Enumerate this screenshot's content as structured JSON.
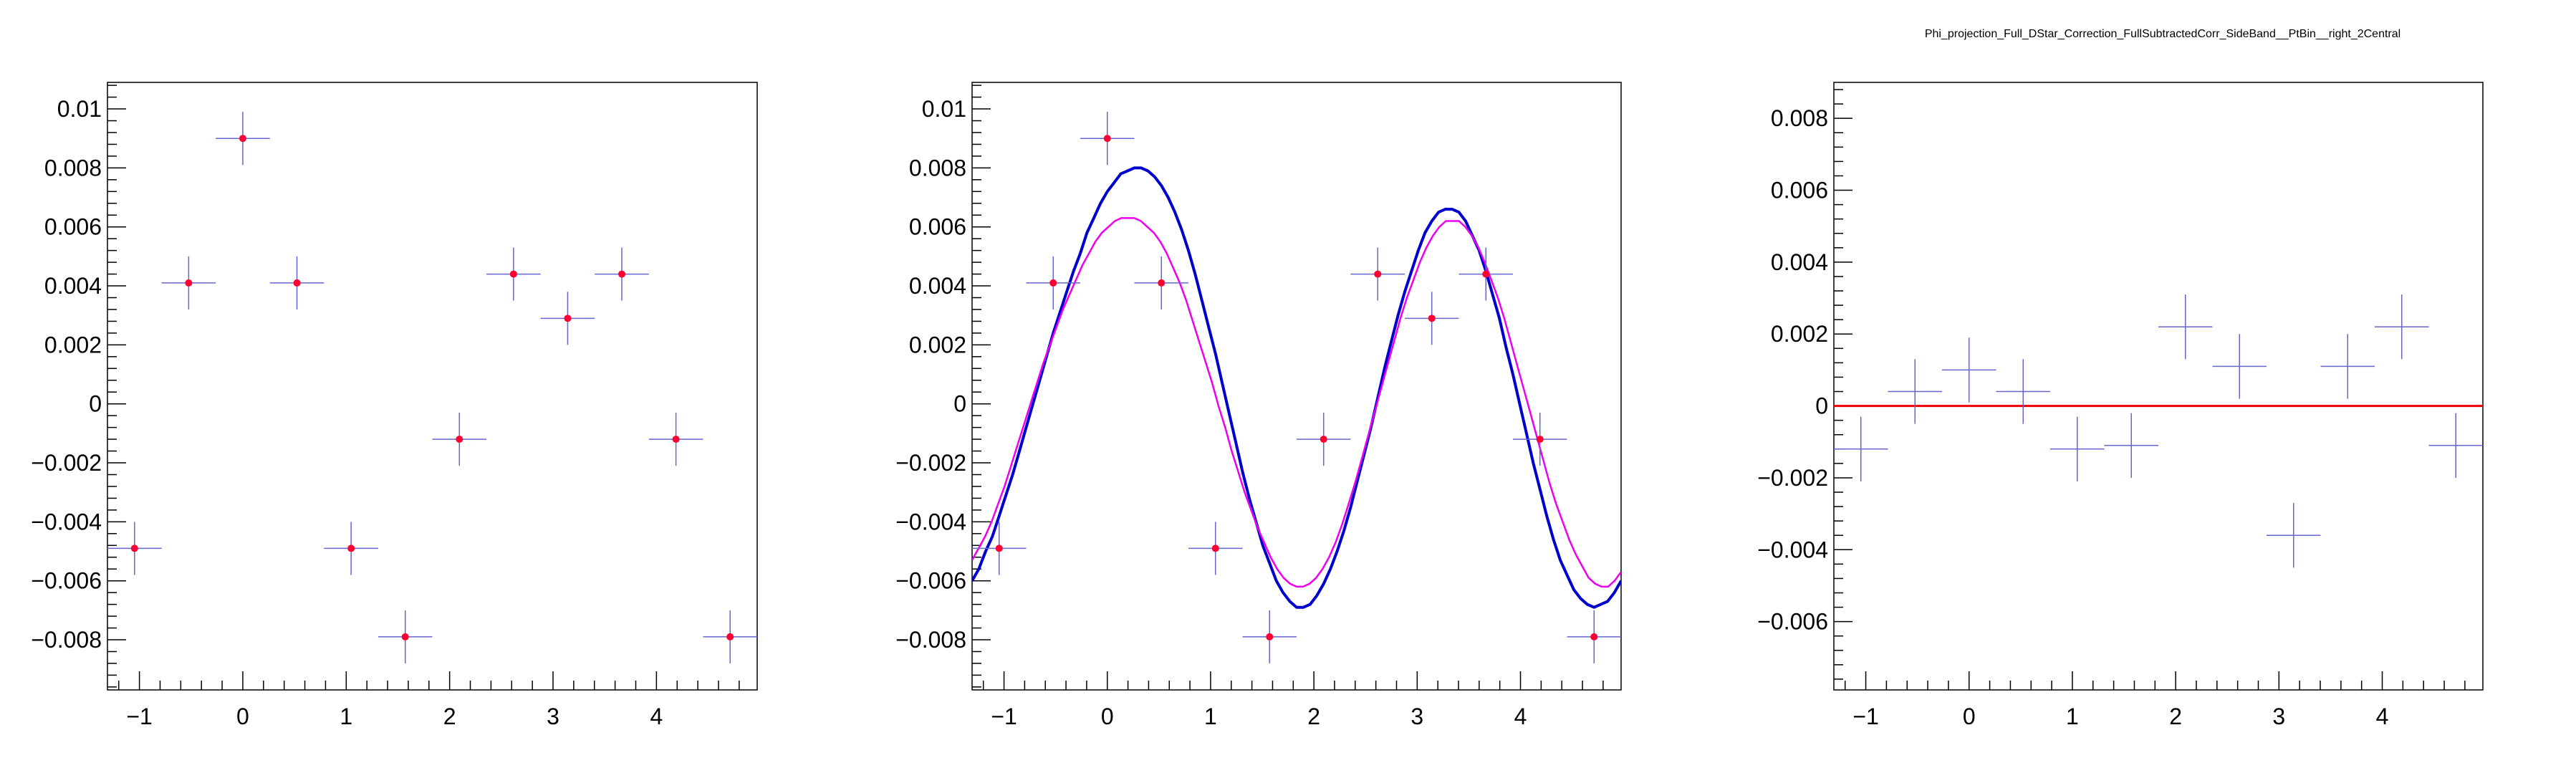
{
  "chart_data": [
    {
      "type": "scatter",
      "title": "",
      "xlabel": "",
      "ylabel": "",
      "xlim": [
        -1.309,
        4.9742
      ],
      "ylim": [
        -0.0097,
        0.0109
      ],
      "xticks": [
        -1,
        0,
        1,
        2,
        3,
        4
      ],
      "xtick_labels": [
        "−1",
        "0",
        "1",
        "2",
        "3",
        "4"
      ],
      "yticks": [
        -0.008,
        -0.006,
        -0.004,
        -0.002,
        0,
        0.002,
        0.004,
        0.006,
        0.008,
        0.01
      ],
      "ytick_labels": [
        "−0.008",
        "−0.006",
        "−0.004",
        "−0.002",
        "0",
        "0.002",
        "0.004",
        "0.006",
        "0.008",
        "0.01"
      ],
      "series": [
        {
          "x": [
            -1.0472,
            -0.5236,
            0,
            0.5236,
            1.0472,
            1.5708,
            2.0944,
            2.618,
            3.1416,
            3.6652,
            4.1888,
            4.7124
          ],
          "y": [
            -0.0049,
            0.0041,
            0.009,
            0.0041,
            -0.0049,
            -0.0079,
            -0.0012,
            0.0044,
            0.0029,
            0.0044,
            -0.0012,
            -0.0079
          ],
          "yerr": [
            0.0009,
            0.0009,
            0.0009,
            0.0009,
            0.0009,
            0.0009,
            0.0009,
            0.0009,
            0.0009,
            0.0009,
            0.0009,
            0.0009
          ],
          "xerr": 0.2618,
          "errorbar_color": "#6666cc",
          "marker_color": "#ff0033"
        }
      ],
      "curves": []
    },
    {
      "type": "scatter",
      "title": "",
      "xlabel": "",
      "ylabel": "",
      "xlim": [
        -1.309,
        4.9742
      ],
      "ylim": [
        -0.0097,
        0.0109
      ],
      "xticks": [
        -1,
        0,
        1,
        2,
        3,
        4
      ],
      "xtick_labels": [
        "−1",
        "0",
        "1",
        "2",
        "3",
        "4"
      ],
      "yticks": [
        -0.008,
        -0.006,
        -0.004,
        -0.002,
        0,
        0.002,
        0.004,
        0.006,
        0.008,
        0.01
      ],
      "ytick_labels": [
        "−0.008",
        "−0.006",
        "−0.004",
        "−0.002",
        "0",
        "0.002",
        "0.004",
        "0.006",
        "0.008",
        "0.01"
      ],
      "series": [
        {
          "x": [
            -1.0472,
            -0.5236,
            0,
            0.5236,
            1.0472,
            1.5708,
            2.0944,
            2.618,
            3.1416,
            3.6652,
            4.1888,
            4.7124
          ],
          "y": [
            -0.0049,
            0.0041,
            0.009,
            0.0041,
            -0.0049,
            -0.0079,
            -0.0012,
            0.0044,
            0.0029,
            0.0044,
            -0.0012,
            -0.0079
          ],
          "yerr": [
            0.0009,
            0.0009,
            0.0009,
            0.0009,
            0.0009,
            0.0009,
            0.0009,
            0.0009,
            0.0009,
            0.0009,
            0.0009,
            0.0009
          ],
          "xerr": 0.2618,
          "errorbar_color": "#6666cc",
          "marker_color": "#ff0033"
        }
      ],
      "curves": [
        {
          "color": "#0000cc",
          "x_range": [
            -1.309,
            4.9742
          ],
          "y": [
            -0.006,
            -0.0056,
            -0.005,
            -0.0045,
            -0.0038,
            -0.0031,
            -0.0024,
            -0.0016,
            -0.0008,
            0.0,
            0.0008,
            0.0016,
            0.0024,
            0.0031,
            0.0038,
            0.0045,
            0.0051,
            0.0058,
            0.0063,
            0.0068,
            0.0072,
            0.0075,
            0.0078,
            0.0079,
            0.008,
            0.008,
            0.0079,
            0.0077,
            0.0074,
            0.007,
            0.0065,
            0.0059,
            0.0052,
            0.0044,
            0.0035,
            0.0026,
            0.0017,
            0.0007,
            -0.0003,
            -0.0013,
            -0.0023,
            -0.0032,
            -0.004,
            -0.0048,
            -0.0054,
            -0.006,
            -0.0064,
            -0.0067,
            -0.0069,
            -0.0069,
            -0.0068,
            -0.0065,
            -0.0061,
            -0.0056,
            -0.005,
            -0.0043,
            -0.0035,
            -0.0026,
            -0.0017,
            -0.0008,
            0.0002,
            0.0012,
            0.0021,
            0.003,
            0.0038,
            0.0045,
            0.0052,
            0.0058,
            0.0062,
            0.0065,
            0.0066,
            0.0066,
            0.0065,
            0.0062,
            0.0057,
            0.0052,
            0.0045,
            0.0037,
            0.0029,
            0.0019,
            0.001,
            0.0,
            -0.001,
            -0.002,
            -0.0029,
            -0.0038,
            -0.0046,
            -0.0053,
            -0.0058,
            -0.0063,
            -0.0066,
            -0.0068,
            -0.0069,
            -0.0068,
            -0.0067,
            -0.0064,
            -0.006
          ]
        },
        {
          "color": "#ee00ee",
          "x_range": [
            -1.309,
            4.9742
          ],
          "y": [
            -0.0053,
            -0.0049,
            -0.0045,
            -0.004,
            -0.0034,
            -0.0028,
            -0.0021,
            -0.0014,
            -0.0007,
            0.0,
            0.0007,
            0.0014,
            0.002,
            0.0026,
            0.0032,
            0.0037,
            0.0042,
            0.0047,
            0.0051,
            0.0055,
            0.0058,
            0.006,
            0.0062,
            0.0063,
            0.0063,
            0.0063,
            0.0062,
            0.006,
            0.0058,
            0.0055,
            0.0051,
            0.0046,
            0.0041,
            0.0035,
            0.0028,
            0.0021,
            0.0014,
            0.0007,
            -0.0001,
            -0.0008,
            -0.0016,
            -0.0023,
            -0.003,
            -0.0036,
            -0.0042,
            -0.0047,
            -0.0052,
            -0.0056,
            -0.0059,
            -0.0061,
            -0.0062,
            -0.0062,
            -0.0061,
            -0.0059,
            -0.0056,
            -0.0052,
            -0.0047,
            -0.0041,
            -0.0034,
            -0.0027,
            -0.0019,
            -0.0011,
            -0.0003,
            0.0005,
            0.0013,
            0.0021,
            0.0029,
            0.0036,
            0.0042,
            0.0048,
            0.0053,
            0.0057,
            0.006,
            0.0062,
            0.0062,
            0.0062,
            0.006,
            0.0057,
            0.0053,
            0.0048,
            0.0042,
            0.0036,
            0.0029,
            0.0021,
            0.0013,
            0.0005,
            -0.0003,
            -0.0011,
            -0.0019,
            -0.0027,
            -0.0034,
            -0.004,
            -0.0046,
            -0.0051,
            -0.0055,
            -0.0059,
            -0.0061,
            -0.0062,
            -0.0062,
            -0.006,
            -0.0057
          ]
        }
      ]
    },
    {
      "type": "scatter",
      "title": "Phi_projection_Full_DStar_Correction_FullSubtractedCorr_SideBand__PtBin__right_2Central",
      "xlabel": "",
      "ylabel": "",
      "xlim": [
        -1.309,
        4.9742
      ],
      "ylim": [
        -0.0079,
        0.009
      ],
      "xticks": [
        -1,
        0,
        1,
        2,
        3,
        4
      ],
      "xtick_labels": [
        "−1",
        "0",
        "1",
        "2",
        "3",
        "4"
      ],
      "yticks": [
        -0.006,
        -0.004,
        -0.002,
        0,
        0.002,
        0.004,
        0.006,
        0.008
      ],
      "ytick_labels": [
        "−0.006",
        "−0.004",
        "−0.002",
        "0",
        "0.002",
        "0.004",
        "0.006",
        "0.008"
      ],
      "series": [
        {
          "x": [
            -1.0472,
            -0.5236,
            0,
            0.5236,
            1.0472,
            1.5708,
            2.0944,
            2.618,
            3.1416,
            3.6652,
            4.1888,
            4.7124
          ],
          "y": [
            -0.0012,
            0.0004,
            0.001,
            0.0004,
            -0.0012,
            -0.0011,
            0.0022,
            0.0011,
            -0.0036,
            0.0011,
            0.0022,
            -0.0011
          ],
          "yerr": [
            0.0009,
            0.0009,
            0.0009,
            0.0009,
            0.0009,
            0.0009,
            0.0009,
            0.0009,
            0.0009,
            0.0009,
            0.0009,
            0.0009
          ],
          "xerr": 0.2618,
          "errorbar_color": "#6666cc",
          "marker_color": ""
        }
      ],
      "hlines": [
        {
          "y": 0,
          "color": "#ee0000"
        }
      ],
      "curves": []
    }
  ]
}
